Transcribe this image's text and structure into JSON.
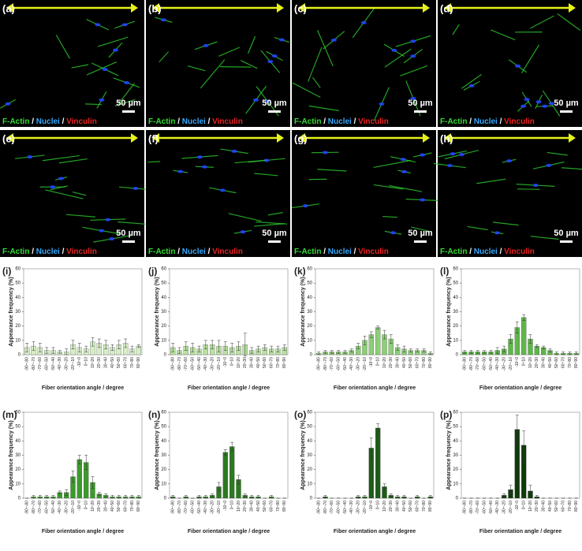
{
  "image_panels": [
    {
      "label": "(a)",
      "scale": "50 µm"
    },
    {
      "label": "(b)",
      "scale": "50 µm"
    },
    {
      "label": "(c)",
      "scale": "50 µm"
    },
    {
      "label": "(d)",
      "scale": "50 µm"
    },
    {
      "label": "(e)",
      "scale": "50 µm"
    },
    {
      "label": "(f)",
      "scale": "50 µm"
    },
    {
      "label": "(g)",
      "scale": "50 µm"
    },
    {
      "label": "(h)",
      "scale": "50 µm"
    }
  ],
  "stain_legend": [
    {
      "text": "F-Actin",
      "color": "#33dd33"
    },
    {
      "text": " / ",
      "color": "#ffffff"
    },
    {
      "text": "Nuclei",
      "color": "#33aaff"
    },
    {
      "text": " / ",
      "color": "#ffffff"
    },
    {
      "text": "Vinculin",
      "color": "#ee2222"
    }
  ],
  "chart_data": [
    {
      "type": "bar",
      "label": "(i)",
      "ylabel": "Appearance frequency (%)",
      "xlabel": "Fiber orientation angle / degree",
      "color": "#d6efc4",
      "categories": [
        "-90~-80",
        "-80~-70",
        "-70~-60",
        "-60~-50",
        "-50~-40",
        "-40~-30",
        "-30~-20",
        "-20~-10",
        "-10~0",
        "0~10",
        "10~20",
        "20~30",
        "30~40",
        "40~50",
        "50~60",
        "60~70",
        "70~80",
        "80~90"
      ],
      "values": [
        5,
        6,
        5,
        3,
        3,
        2,
        2,
        7,
        5,
        4,
        9,
        8,
        7,
        5,
        7,
        8,
        4,
        6
      ],
      "errors": [
        3,
        3,
        3,
        2,
        2,
        1,
        2,
        3,
        3,
        2,
        3,
        3,
        3,
        2,
        3,
        3,
        2,
        1
      ],
      "ylim": [
        0,
        60
      ],
      "yticks": [
        0,
        10,
        20,
        30,
        40,
        50,
        60
      ]
    },
    {
      "type": "bar",
      "label": "(j)",
      "ylabel": "Appearance frequency (%)",
      "xlabel": "Fiber orientation angle / degree",
      "color": "#b9e2a0",
      "categories": [
        "-90~-80",
        "-80~-70",
        "-70~-60",
        "-60~-50",
        "-50~-40",
        "-40~-30",
        "-30~-20",
        "-20~-10",
        "-10~0",
        "0~10",
        "10~20",
        "20~30",
        "30~40",
        "40~50",
        "50~60",
        "60~70",
        "70~80",
        "80~90"
      ],
      "values": [
        5,
        3,
        6,
        5,
        4,
        7,
        7,
        6,
        6,
        5,
        6,
        7,
        3,
        4,
        5,
        4,
        4,
        5
      ],
      "errors": [
        3,
        2,
        3,
        3,
        2,
        3,
        3,
        4,
        3,
        3,
        3,
        8,
        2,
        2,
        2,
        2,
        2,
        2
      ],
      "ylim": [
        0,
        60
      ],
      "yticks": [
        0,
        10,
        20,
        30,
        40,
        50,
        60
      ]
    },
    {
      "type": "bar",
      "label": "(k)",
      "ylabel": "Appearance frequency (%)",
      "xlabel": "Fiber orientation angle / degree",
      "color": "#8ccf76",
      "categories": [
        "-90~-80",
        "-80~-70",
        "-70~-60",
        "-60~-50",
        "-50~-40",
        "-40~-30",
        "-30~-20",
        "-20~-10",
        "-10~0",
        "0~10",
        "10~20",
        "20~30",
        "30~40",
        "40~50",
        "50~60",
        "60~70",
        "70~80",
        "80~90"
      ],
      "values": [
        1,
        2,
        2,
        2,
        2,
        3,
        6,
        10,
        14,
        19,
        14,
        11,
        5,
        4,
        3,
        3,
        3,
        1
      ],
      "errors": [
        1,
        1,
        1,
        1,
        1,
        1,
        2,
        3,
        2,
        1,
        3,
        3,
        2,
        2,
        1,
        1,
        1,
        1
      ],
      "ylim": [
        0,
        60
      ],
      "yticks": [
        0,
        10,
        20,
        30,
        40,
        50,
        60
      ]
    },
    {
      "type": "bar",
      "label": "(l)",
      "ylabel": "Appearance frequency (%)",
      "xlabel": "Fiber orientation angle / degree",
      "color": "#5db848",
      "categories": [
        "-90~-80",
        "-80~-70",
        "-70~-60",
        "-60~-50",
        "-50~-40",
        "-40~-30",
        "-30~-20",
        "-20~-10",
        "-10~0",
        "0~10",
        "10~20",
        "20~30",
        "30~40",
        "40~50",
        "50~60",
        "60~70",
        "70~80",
        "80~90"
      ],
      "values": [
        2,
        2,
        2,
        2,
        2,
        3,
        4,
        11,
        19,
        26,
        11,
        6,
        5,
        3,
        1,
        1,
        1,
        1
      ],
      "errors": [
        1,
        1,
        1,
        1,
        1,
        2,
        2,
        3,
        4,
        2,
        3,
        1,
        1,
        1,
        1,
        1,
        1,
        1
      ],
      "ylim": [
        0,
        60
      ],
      "yticks": [
        0,
        10,
        20,
        30,
        40,
        50,
        60
      ]
    },
    {
      "type": "bar",
      "label": "(m)",
      "ylabel": "Appearance frequency (%)",
      "xlabel": "Fiber orientation angle / degree",
      "color": "#3a9a2a",
      "categories": [
        "-90~-80",
        "-80~-70",
        "-70~-60",
        "-60~-50",
        "-50~-40",
        "-40~-30",
        "-30~-20",
        "-20~-10",
        "-10~0",
        "0~10",
        "10~20",
        "20~30",
        "30~40",
        "40~50",
        "50~60",
        "60~70",
        "70~80",
        "80~90"
      ],
      "values": [
        0,
        1,
        1,
        1,
        1,
        4,
        4,
        15,
        27,
        25,
        11,
        3,
        2,
        1,
        1,
        1,
        1,
        1
      ],
      "errors": [
        0,
        1,
        1,
        1,
        1,
        1,
        2,
        4,
        3,
        5,
        4,
        1,
        1,
        1,
        1,
        1,
        1,
        1
      ],
      "ylim": [
        0,
        60
      ],
      "yticks": [
        0,
        10,
        20,
        30,
        40,
        50,
        60
      ]
    },
    {
      "type": "bar",
      "label": "(n)",
      "ylabel": "Appearance frequency (%)",
      "xlabel": "Fiber orientation angle / degree",
      "color": "#2a7a1e",
      "categories": [
        "-90~-80",
        "-80~-70",
        "-70~-60",
        "-60~-50",
        "-50~-40",
        "-40~-30",
        "-30~-20",
        "-20~-10",
        "-10~0",
        "0~10",
        "10~20",
        "20~30",
        "30~40",
        "40~50",
        "50~60",
        "60~70",
        "70~80",
        "80~90"
      ],
      "values": [
        1,
        0,
        1,
        0,
        1,
        1,
        2,
        8,
        32,
        36,
        13,
        2,
        1,
        1,
        0,
        1,
        0,
        0
      ],
      "errors": [
        1,
        0,
        1,
        0,
        1,
        1,
        1,
        3,
        2,
        3,
        3,
        1,
        1,
        1,
        0,
        1,
        0,
        0
      ],
      "ylim": [
        0,
        60
      ],
      "yticks": [
        0,
        10,
        20,
        30,
        40,
        50,
        60
      ]
    },
    {
      "type": "bar",
      "label": "(o)",
      "ylabel": "Appearance frequency (%)",
      "xlabel": "Fiber orientation angle / degree",
      "color": "#1c5c14",
      "categories": [
        "-90~-80",
        "-80~-70",
        "-70~-60",
        "-60~-50",
        "-50~-40",
        "-40~-30",
        "-30~-20",
        "-20~-10",
        "-10~0",
        "0~10",
        "10~20",
        "20~30",
        "30~40",
        "40~50",
        "50~60",
        "60~70",
        "70~80",
        "80~90"
      ],
      "values": [
        0,
        1,
        0,
        0,
        0,
        0,
        1,
        1,
        35,
        49,
        8,
        2,
        1,
        1,
        0,
        1,
        0,
        1
      ],
      "errors": [
        0,
        1,
        0,
        0,
        0,
        0,
        1,
        1,
        7,
        3,
        2,
        1,
        1,
        1,
        0,
        1,
        0,
        1
      ],
      "ylim": [
        0,
        60
      ],
      "yticks": [
        0,
        10,
        20,
        30,
        40,
        50,
        60
      ]
    },
    {
      "type": "bar",
      "label": "(p)",
      "ylabel": "Appearance frequency (%)",
      "xlabel": "Fiber orientation angle / degree",
      "color": "#0f3a0a",
      "categories": [
        "-90~-80",
        "-80~-70",
        "-70~-60",
        "-60~-50",
        "-50~-40",
        "-40~-30",
        "-30~-20",
        "-20~-10",
        "-10~0",
        "0~10",
        "10~20",
        "20~30",
        "30~40",
        "40~50",
        "50~60",
        "60~70",
        "70~80",
        "80~90"
      ],
      "values": [
        0,
        0,
        0,
        0,
        0,
        0,
        2,
        6,
        48,
        37,
        5,
        1,
        0,
        0,
        0,
        0,
        0,
        0
      ],
      "errors": [
        0,
        0,
        0,
        0,
        0,
        0,
        1,
        3,
        10,
        10,
        4,
        1,
        0,
        0,
        0,
        0,
        0,
        0
      ],
      "ylim": [
        0,
        60
      ],
      "yticks": [
        0,
        10,
        20,
        30,
        40,
        50,
        60
      ]
    }
  ]
}
